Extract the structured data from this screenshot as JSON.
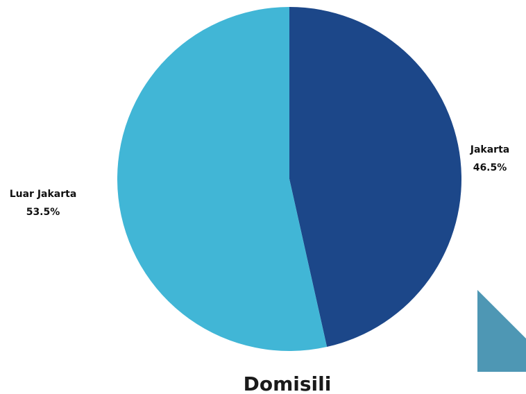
{
  "chart_data": {
    "type": "pie",
    "title": "Domisili",
    "slices": [
      {
        "label": "Jakarta",
        "value": 46.5,
        "value_label": "46.5%",
        "color": "#1c4789"
      },
      {
        "label": "Luar Jakarta",
        "value": 53.5,
        "value_label": "53.5%",
        "color": "#41b6d6"
      }
    ],
    "start_angle_deg": 0,
    "direction": "clockwise"
  },
  "decoration": {
    "corner_shape_color": "#4e97b4"
  }
}
